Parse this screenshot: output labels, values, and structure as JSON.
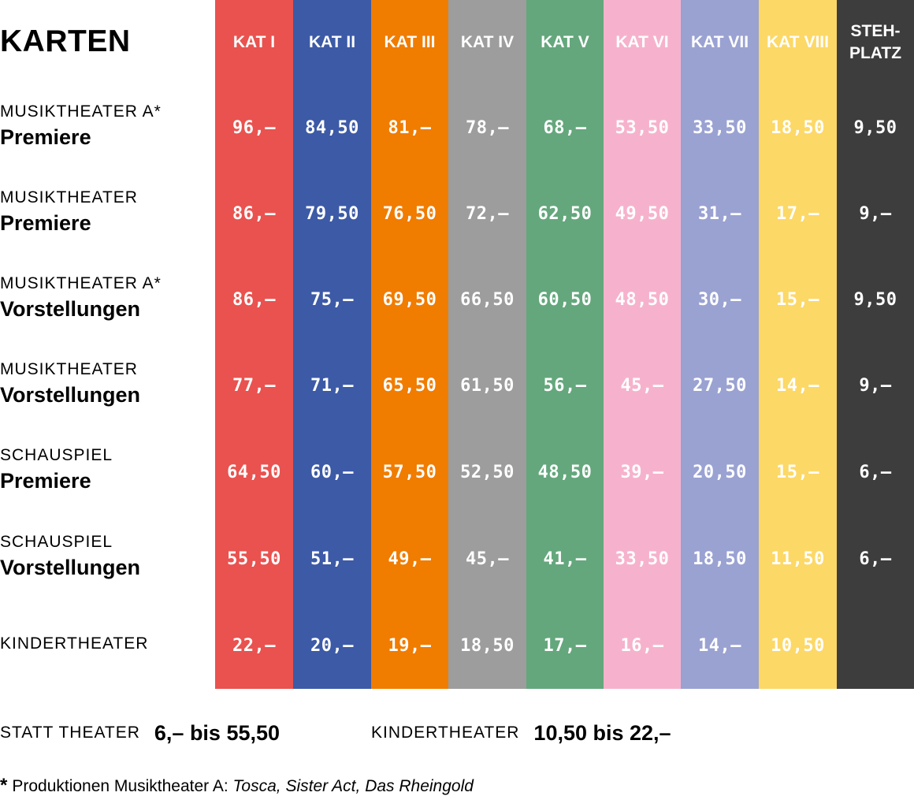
{
  "title": "KARTEN",
  "colors": {
    "kat1": "#e9524f",
    "kat2": "#3c5aa6",
    "kat3": "#f07c00",
    "kat4": "#9d9d9d",
    "kat5": "#64a77c",
    "kat6": "#f6b2cc",
    "kat7": "#9aa2d2",
    "kat8": "#fcd867",
    "steh": "#3d3d3d"
  },
  "columns": [
    {
      "id": "kat1",
      "label": "KAT I"
    },
    {
      "id": "kat2",
      "label": "KAT II"
    },
    {
      "id": "kat3",
      "label": "KAT III"
    },
    {
      "id": "kat4",
      "label": "KAT IV"
    },
    {
      "id": "kat5",
      "label": "KAT V"
    },
    {
      "id": "kat6",
      "label": "KAT VI"
    },
    {
      "id": "kat7",
      "label": "KAT VII"
    },
    {
      "id": "kat8",
      "label": "KAT VIII"
    },
    {
      "id": "steh",
      "label_line1": "STEH-",
      "label_line2": "PLATZ"
    }
  ],
  "rows": [
    {
      "top": "MUSIKTHEATER A*",
      "main": "Premiere",
      "prices": [
        "96,–",
        "84,50",
        "81,–",
        "78,–",
        "68,–",
        "53,50",
        "33,50",
        "18,50",
        "9,50"
      ]
    },
    {
      "top": "MUSIKTHEATER",
      "main": "Premiere",
      "prices": [
        "86,–",
        "79,50",
        "76,50",
        "72,–",
        "62,50",
        "49,50",
        "31,–",
        "17,–",
        "9,–"
      ]
    },
    {
      "top": "MUSIKTHEATER A*",
      "main": "Vorstellungen",
      "prices": [
        "86,–",
        "75,–",
        "69,50",
        "66,50",
        "60,50",
        "48,50",
        "30,–",
        "15,–",
        "9,50"
      ]
    },
    {
      "top": "MUSIKTHEATER",
      "main": "Vorstellungen",
      "prices": [
        "77,–",
        "71,–",
        "65,50",
        "61,50",
        "56,–",
        "45,–",
        "27,50",
        "14,–",
        "9,–"
      ]
    },
    {
      "top": "SCHAUSPIEL",
      "main": "Premiere",
      "prices": [
        "64,50",
        "60,–",
        "57,50",
        "52,50",
        "48,50",
        "39,–",
        "20,50",
        "15,–",
        "6,–"
      ]
    },
    {
      "top": "SCHAUSPIEL",
      "main": "Vorstellungen",
      "prices": [
        "55,50",
        "51,–",
        "49,–",
        "45,–",
        "41,–",
        "33,50",
        "18,50",
        "11,50",
        "6,–"
      ]
    },
    {
      "top": "KINDERTHEATER",
      "main": "",
      "prices": [
        "22,–",
        "20,–",
        "19,–",
        "18,50",
        "17,–",
        "16,–",
        "14,–",
        "10,50",
        ""
      ]
    }
  ],
  "summary": {
    "statt_label": "STATT THEATER",
    "statt_value": "6,– bis 55,50",
    "kinder_label": "KINDERTHEATER",
    "kinder_value": "10,50 bis 22,–"
  },
  "footnote": {
    "star": "*",
    "text": "Produktionen Musiktheater A: ",
    "productions": "Tosca, Sister Act, Das Rheingold"
  }
}
